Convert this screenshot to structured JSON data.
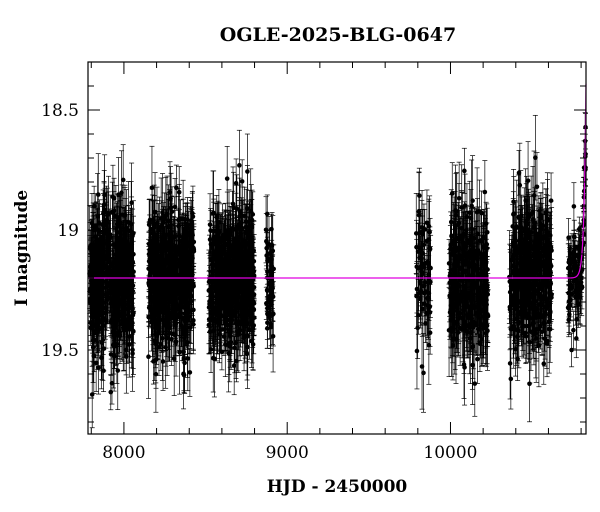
{
  "chart_data": {
    "type": "scatter",
    "title": "OGLE-2025-BLG-0647",
    "xlabel": "HJD - 2450000",
    "ylabel": "I magnitude",
    "xlim": [
      7780,
      10830
    ],
    "ylim": [
      19.85,
      18.3
    ],
    "y_inverted": true,
    "grid": false,
    "x_ticks": [
      8000,
      9000,
      10000
    ],
    "x_tick_labels": [
      "8000",
      "9000",
      "10000"
    ],
    "y_ticks": [
      18.5,
      19,
      19.5
    ],
    "y_tick_labels": [
      "18.5",
      "19",
      "19.5"
    ],
    "x_minor_step": 200,
    "y_minor_step": 0.1,
    "colors": {
      "points": "#000000",
      "model": "#e000e0",
      "axes": "#000000"
    },
    "model": {
      "name": "",
      "baseline_mag": 19.2,
      "peak_time": 10826,
      "peak_mag": 18.62,
      "rise_timescale_days": 12
    },
    "observing_seasons": [
      {
        "x_start": 7790,
        "x_end": 8060,
        "mag_center": 19.2,
        "mag_spread": 0.14,
        "err_typical": 0.12,
        "n_points": 520
      },
      {
        "x_start": 8150,
        "x_end": 8430,
        "mag_center": 19.2,
        "mag_spread": 0.14,
        "err_typical": 0.12,
        "n_points": 520
      },
      {
        "x_start": 8520,
        "x_end": 8800,
        "mag_center": 19.2,
        "mag_spread": 0.14,
        "err_typical": 0.12,
        "n_points": 520
      },
      {
        "x_start": 8870,
        "x_end": 8920,
        "mag_center": 19.2,
        "mag_spread": 0.12,
        "err_typical": 0.1,
        "n_points": 50
      },
      {
        "x_start": 9790,
        "x_end": 9880,
        "mag_center": 19.2,
        "mag_spread": 0.14,
        "err_typical": 0.12,
        "n_points": 70
      },
      {
        "x_start": 9990,
        "x_end": 10230,
        "mag_center": 19.2,
        "mag_spread": 0.15,
        "err_typical": 0.13,
        "n_points": 320
      },
      {
        "x_start": 10360,
        "x_end": 10620,
        "mag_center": 19.2,
        "mag_spread": 0.15,
        "err_typical": 0.13,
        "n_points": 380
      },
      {
        "x_start": 10720,
        "x_end": 10828,
        "mag_center": 19.2,
        "mag_spread": 0.1,
        "err_typical": 0.08,
        "n_points": 110,
        "follows_model": true
      }
    ]
  }
}
